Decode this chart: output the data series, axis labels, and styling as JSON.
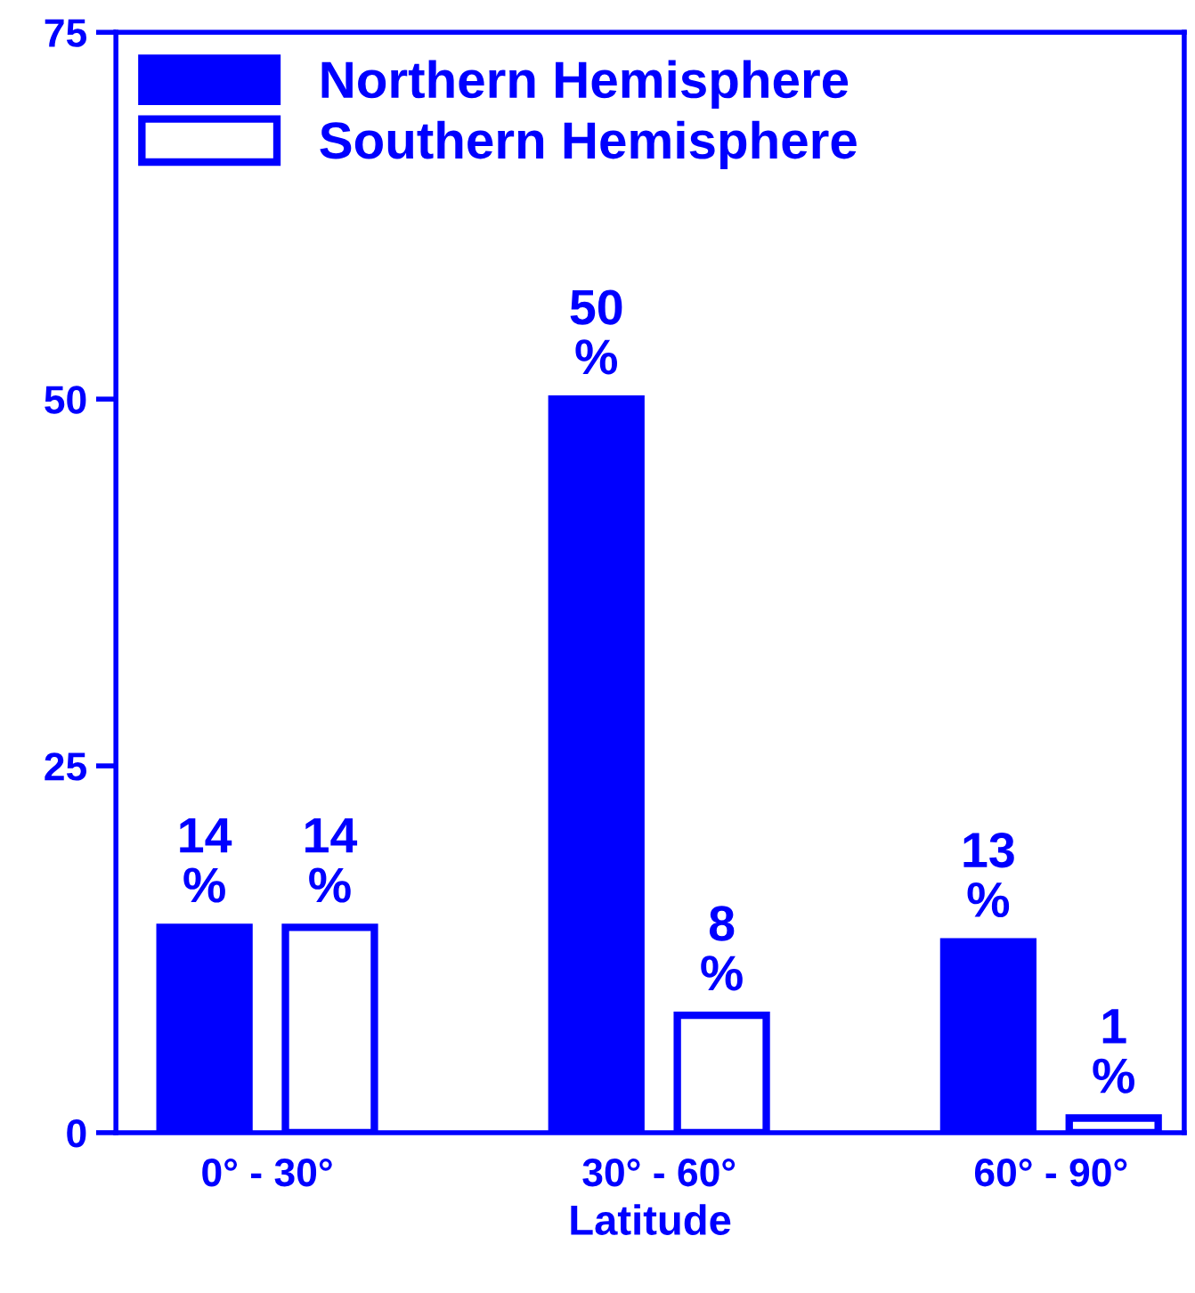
{
  "chart_data": {
    "type": "bar",
    "xlabel": "Latitude",
    "categories": [
      "0° - 30°",
      "30° - 60°",
      "60° - 90°"
    ],
    "series": [
      {
        "name": "Northern Hemisphere",
        "color": "#0000ff",
        "values": [
          14,
          50,
          13
        ],
        "value_labels": [
          "14\n%",
          "50\n%",
          "13\n%"
        ]
      },
      {
        "name": "Southern Hemisphere",
        "color": "#0000ff",
        "values": [
          14,
          8,
          1
        ],
        "value_labels": [
          "14\n%",
          "8\n%",
          "1\n%"
        ]
      }
    ],
    "ylim": [
      0,
      75
    ],
    "yticks": [
      0,
      25,
      50,
      75
    ],
    "grid": false,
    "legend": "top left"
  }
}
